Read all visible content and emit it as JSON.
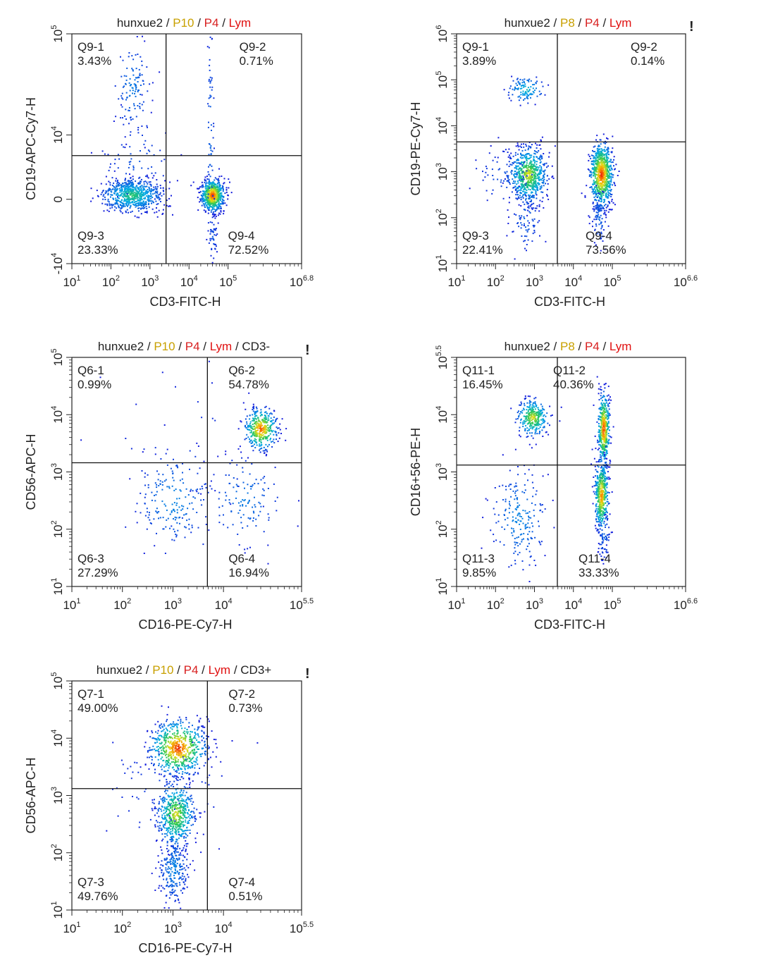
{
  "figure": {
    "plots": [
      {
        "id": "p1",
        "gating": [
          {
            "text": "hunxue2",
            "color": "#222222"
          },
          {
            "text": " / ",
            "color": "#222222"
          },
          {
            "text": "P10",
            "color": "#c8a000"
          },
          {
            "text": " / ",
            "color": "#222222"
          },
          {
            "text": "P4",
            "color": "#d82020"
          },
          {
            "text": " / ",
            "color": "#222222"
          },
          {
            "text": "Lym",
            "color": "#e01010"
          }
        ],
        "marker": "",
        "xlabel": "CD3-FITC-H",
        "ylabel": "CD19-APC-Cy7-H",
        "x_ticks": [
          {
            "base": "10",
            "exp": "1"
          },
          {
            "base": "10",
            "exp": "2"
          },
          {
            "base": "10",
            "exp": "3"
          },
          {
            "base": "10",
            "exp": "4"
          },
          {
            "base": "10",
            "exp": "5"
          },
          {
            "base": "10",
            "exp": "6.8"
          }
        ],
        "y_ticks": [
          {
            "base": "10",
            "exp": "5"
          },
          {
            "base": "10",
            "exp": "4"
          },
          {
            "base": "0",
            "exp": ""
          },
          {
            "base": "-10",
            "exp": "4"
          }
        ],
        "quadrants": [
          {
            "name": "Q9-1",
            "value": "3.43%",
            "pos": "upper-left"
          },
          {
            "name": "Q9-2",
            "value": "0.71%",
            "pos": "upper-right"
          },
          {
            "name": "Q9-3",
            "value": "23.33%",
            "pos": "lower-left"
          },
          {
            "name": "Q9-4",
            "value": "72.52%",
            "pos": "lower-right"
          }
        ]
      },
      {
        "id": "p2",
        "gating": [
          {
            "text": "hunxue2",
            "color": "#222222"
          },
          {
            "text": " / ",
            "color": "#222222"
          },
          {
            "text": "P8",
            "color": "#c8a000"
          },
          {
            "text": " / ",
            "color": "#222222"
          },
          {
            "text": "P4",
            "color": "#d82020"
          },
          {
            "text": " / ",
            "color": "#222222"
          },
          {
            "text": "Lym",
            "color": "#e01010"
          }
        ],
        "marker": "!",
        "xlabel": "CD3-FITC-H",
        "ylabel": "CD19-PE-Cy7-H",
        "x_ticks": [
          {
            "base": "10",
            "exp": "1"
          },
          {
            "base": "10",
            "exp": "2"
          },
          {
            "base": "10",
            "exp": "3"
          },
          {
            "base": "10",
            "exp": "4"
          },
          {
            "base": "10",
            "exp": "5"
          },
          {
            "base": "10",
            "exp": "6.6"
          }
        ],
        "y_ticks": [
          {
            "base": "10",
            "exp": "6"
          },
          {
            "base": "10",
            "exp": "5"
          },
          {
            "base": "10",
            "exp": "4"
          },
          {
            "base": "10",
            "exp": "3"
          },
          {
            "base": "10",
            "exp": "2"
          },
          {
            "base": "10",
            "exp": "1"
          }
        ],
        "quadrants": [
          {
            "name": "Q9-1",
            "value": "3.89%",
            "pos": "upper-left"
          },
          {
            "name": "Q9-2",
            "value": "0.14%",
            "pos": "upper-right"
          },
          {
            "name": "Q9-3",
            "value": "22.41%",
            "pos": "lower-left"
          },
          {
            "name": "Q9-4",
            "value": "73.56%",
            "pos": "lower-right"
          }
        ]
      },
      {
        "id": "p3",
        "gating": [
          {
            "text": "hunxue2",
            "color": "#222222"
          },
          {
            "text": " / ",
            "color": "#222222"
          },
          {
            "text": "P10",
            "color": "#c8a000"
          },
          {
            "text": " / ",
            "color": "#222222"
          },
          {
            "text": "P4",
            "color": "#d82020"
          },
          {
            "text": " / ",
            "color": "#222222"
          },
          {
            "text": "Lym",
            "color": "#e01010"
          },
          {
            "text": " / CD3-",
            "color": "#222222"
          }
        ],
        "marker": "!",
        "xlabel": "CD16-PE-Cy7-H",
        "ylabel": "CD56-APC-H",
        "x_ticks": [
          {
            "base": "10",
            "exp": "1"
          },
          {
            "base": "10",
            "exp": "2"
          },
          {
            "base": "10",
            "exp": "3"
          },
          {
            "base": "10",
            "exp": "4"
          },
          {
            "base": "10",
            "exp": "5.5"
          }
        ],
        "y_ticks": [
          {
            "base": "10",
            "exp": "5"
          },
          {
            "base": "10",
            "exp": "4"
          },
          {
            "base": "10",
            "exp": "3"
          },
          {
            "base": "10",
            "exp": "2"
          },
          {
            "base": "10",
            "exp": "1"
          }
        ],
        "quadrants": [
          {
            "name": "Q6-1",
            "value": "0.99%",
            "pos": "upper-left"
          },
          {
            "name": "Q6-2",
            "value": "54.78%",
            "pos": "upper-right"
          },
          {
            "name": "Q6-3",
            "value": "27.29%",
            "pos": "lower-left"
          },
          {
            "name": "Q6-4",
            "value": "16.94%",
            "pos": "lower-right"
          }
        ]
      },
      {
        "id": "p4",
        "gating": [
          {
            "text": "hunxue2",
            "color": "#222222"
          },
          {
            "text": " / ",
            "color": "#222222"
          },
          {
            "text": "P8",
            "color": "#c8a000"
          },
          {
            "text": " / ",
            "color": "#222222"
          },
          {
            "text": "P4",
            "color": "#d82020"
          },
          {
            "text": " / ",
            "color": "#222222"
          },
          {
            "text": "Lym",
            "color": "#e01010"
          }
        ],
        "marker": "",
        "xlabel": "CD3-FITC-H",
        "ylabel": "CD16+56-PE-H",
        "x_ticks": [
          {
            "base": "10",
            "exp": "1"
          },
          {
            "base": "10",
            "exp": "2"
          },
          {
            "base": "10",
            "exp": "3"
          },
          {
            "base": "10",
            "exp": "4"
          },
          {
            "base": "10",
            "exp": "5"
          },
          {
            "base": "10",
            "exp": "6.6"
          }
        ],
        "y_ticks": [
          {
            "base": "10",
            "exp": "5.5"
          },
          {
            "base": "10",
            "exp": "4"
          },
          {
            "base": "10",
            "exp": "3"
          },
          {
            "base": "10",
            "exp": "2"
          },
          {
            "base": "10",
            "exp": "1"
          }
        ],
        "quadrants": [
          {
            "name": "Q11-1",
            "value": "16.45%",
            "pos": "upper-left"
          },
          {
            "name": "Q11-2",
            "value": "40.36%",
            "pos": "upper-right"
          },
          {
            "name": "Q11-3",
            "value": "9.85%",
            "pos": "lower-left"
          },
          {
            "name": "Q11-4",
            "value": "33.33%",
            "pos": "lower-right"
          }
        ]
      },
      {
        "id": "p5",
        "gating": [
          {
            "text": "hunxue2",
            "color": "#222222"
          },
          {
            "text": " / ",
            "color": "#222222"
          },
          {
            "text": "P10",
            "color": "#c8a000"
          },
          {
            "text": " / ",
            "color": "#222222"
          },
          {
            "text": "P4",
            "color": "#d82020"
          },
          {
            "text": " / ",
            "color": "#222222"
          },
          {
            "text": "Lym",
            "color": "#e01010"
          },
          {
            "text": " / CD3+",
            "color": "#222222"
          }
        ],
        "marker": "!",
        "xlabel": "CD16-PE-Cy7-H",
        "ylabel": "CD56-APC-H",
        "x_ticks": [
          {
            "base": "10",
            "exp": "1"
          },
          {
            "base": "10",
            "exp": "2"
          },
          {
            "base": "10",
            "exp": "3"
          },
          {
            "base": "10",
            "exp": "4"
          },
          {
            "base": "10",
            "exp": "5.5"
          }
        ],
        "y_ticks": [
          {
            "base": "10",
            "exp": "5"
          },
          {
            "base": "10",
            "exp": "4"
          },
          {
            "base": "10",
            "exp": "3"
          },
          {
            "base": "10",
            "exp": "2"
          },
          {
            "base": "10",
            "exp": "1"
          }
        ],
        "quadrants": [
          {
            "name": "Q7-1",
            "value": "49.00%",
            "pos": "upper-left"
          },
          {
            "name": "Q7-2",
            "value": "0.73%",
            "pos": "upper-right"
          },
          {
            "name": "Q7-3",
            "value": "49.76%",
            "pos": "lower-left"
          },
          {
            "name": "Q7-4",
            "value": "0.51%",
            "pos": "lower-right"
          }
        ]
      }
    ]
  },
  "chart_data": [
    {
      "type": "scatter",
      "title": "hunxue2 / P10 / P4 / Lym",
      "xlabel": "CD3-FITC-H",
      "ylabel": "CD19-APC-Cy7-H",
      "xscale": "log",
      "xlim": [
        10,
        6309573
      ],
      "ylim": [
        -10000,
        100000
      ],
      "quadrant_gate": {
        "x": 2500,
        "y": 6000
      },
      "quadrants": {
        "Q9-1": 3.43,
        "Q9-2": 0.71,
        "Q9-3": 23.33,
        "Q9-4": 72.52
      },
      "populations": [
        {
          "quadrant": "Q9-3",
          "center_log10_x": 2.5,
          "center_y": 0
        },
        {
          "quadrant": "Q9-4",
          "center_log10_x": 4.6,
          "center_y": 0
        }
      ]
    },
    {
      "type": "scatter",
      "title": "hunxue2 / P8 / P4 / Lym",
      "xlabel": "CD3-FITC-H",
      "ylabel": "CD19-PE-Cy7-H",
      "xscale": "log",
      "yscale": "log",
      "xlim": [
        10,
        3981072
      ],
      "ylim": [
        10,
        1000000
      ],
      "quadrant_gate": {
        "x": 2500,
        "y": 4000
      },
      "quadrants": {
        "Q9-1": 3.89,
        "Q9-2": 0.14,
        "Q9-3": 22.41,
        "Q9-4": 73.56
      },
      "populations": [
        {
          "quadrant": "Q9-1",
          "center_log10_x": 2.7,
          "center_log10_y": 4.8
        },
        {
          "quadrant": "Q9-3",
          "center_log10_x": 2.7,
          "center_log10_y": 3.0
        },
        {
          "quadrant": "Q9-4",
          "center_log10_x": 4.5,
          "center_log10_y": 3.0
        }
      ]
    },
    {
      "type": "scatter",
      "title": "hunxue2 / P10 / P4 / Lym / CD3-",
      "xlabel": "CD16-PE-Cy7-H",
      "ylabel": "CD56-APC-H",
      "xscale": "log",
      "yscale": "log",
      "xlim": [
        10,
        316228
      ],
      "ylim": [
        10,
        100000
      ],
      "quadrant_gate": {
        "x": 4500,
        "y": 1400
      },
      "quadrants": {
        "Q6-1": 0.99,
        "Q6-2": 54.78,
        "Q6-3": 27.29,
        "Q6-4": 16.94
      },
      "populations": [
        {
          "quadrant": "Q6-2",
          "center_log10_x": 4.6,
          "center_log10_y": 3.7
        },
        {
          "quadrant": "Q6-3",
          "center_log10_x": 3.0,
          "center_log10_y": 2.6
        },
        {
          "quadrant": "Q6-4",
          "center_log10_x": 4.3,
          "center_log10_y": 2.7
        }
      ]
    },
    {
      "type": "scatter",
      "title": "hunxue2 / P8 / P4 / Lym",
      "xlabel": "CD3-FITC-H",
      "ylabel": "CD16+56-PE-H",
      "xscale": "log",
      "yscale": "log",
      "xlim": [
        10,
        3981072
      ],
      "ylim": [
        10,
        316228
      ],
      "quadrant_gate": {
        "x": 2500,
        "y": 2500
      },
      "quadrants": {
        "Q11-1": 16.45,
        "Q11-2": 40.36,
        "Q11-3": 9.85,
        "Q11-4": 33.33
      },
      "populations": [
        {
          "quadrant": "Q11-1",
          "center_log10_x": 2.8,
          "center_log10_y": 4.2
        },
        {
          "quadrant": "Q11-2",
          "center_log10_x": 4.6,
          "center_log10_y": 4.0
        },
        {
          "quadrant": "Q11-3",
          "center_log10_x": 2.5,
          "center_log10_y": 2.6
        },
        {
          "quadrant": "Q11-4",
          "center_log10_x": 4.4,
          "center_log10_y": 2.9
        }
      ]
    },
    {
      "type": "scatter",
      "title": "hunxue2 / P10 / P4 / Lym / CD3+",
      "xlabel": "CD16-PE-Cy7-H",
      "ylabel": "CD56-APC-H",
      "xscale": "log",
      "yscale": "log",
      "xlim": [
        10,
        316228
      ],
      "ylim": [
        10,
        100000
      ],
      "quadrant_gate": {
        "x": 4500,
        "y": 1400
      },
      "quadrants": {
        "Q7-1": 49.0,
        "Q7-2": 0.73,
        "Q7-3": 49.76,
        "Q7-4": 0.51
      },
      "populations": [
        {
          "quadrant": "Q7-1",
          "center_log10_x": 3.0,
          "center_log10_y": 3.8
        },
        {
          "quadrant": "Q7-3",
          "center_log10_x": 3.0,
          "center_log10_y": 2.4
        }
      ]
    }
  ]
}
